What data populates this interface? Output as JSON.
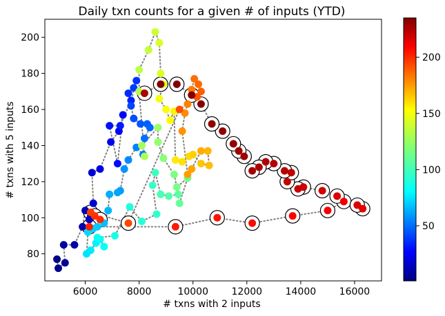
{
  "chart_data": {
    "type": "scatter",
    "title": "Daily txn counts for a given # of inputs (YTD)",
    "xlabel": "# txns with 2 inputs",
    "ylabel": "# txns with 5 inputs",
    "xlim": [
      4500,
      17000
    ],
    "ylim": [
      65,
      210
    ],
    "xticks": [
      6000,
      8000,
      10000,
      12000,
      14000,
      16000
    ],
    "yticks": [
      80,
      100,
      120,
      140,
      160,
      180,
      200
    ],
    "grid": false,
    "colorbar": {
      "colormap": "jet",
      "range": [
        1,
        235
      ],
      "ticks": [
        50,
        100,
        150,
        200
      ],
      "label": ""
    },
    "points": [
      {
        "x": 4950,
        "y": 77,
        "day": 2
      },
      {
        "x": 5000,
        "y": 72,
        "day": 4
      },
      {
        "x": 5250,
        "y": 75,
        "day": 6
      },
      {
        "x": 5200,
        "y": 85,
        "day": 8
      },
      {
        "x": 5600,
        "y": 85,
        "day": 10
      },
      {
        "x": 5900,
        "y": 95,
        "day": 12
      },
      {
        "x": 6000,
        "y": 104,
        "day": 14
      },
      {
        "x": 6150,
        "y": 99,
        "day": 16
      },
      {
        "x": 6200,
        "y": 100,
        "day": 18
      },
      {
        "x": 6300,
        "y": 108,
        "day": 20
      },
      {
        "x": 6250,
        "y": 125,
        "day": 22
      },
      {
        "x": 6550,
        "y": 127,
        "day": 24
      },
      {
        "x": 6950,
        "y": 142,
        "day": 26
      },
      {
        "x": 7250,
        "y": 148,
        "day": 28
      },
      {
        "x": 7400,
        "y": 157,
        "day": 30
      },
      {
        "x": 7200,
        "y": 130,
        "day": 32
      },
      {
        "x": 6900,
        "y": 151,
        "day": 34
      },
      {
        "x": 7300,
        "y": 151,
        "day": 36
      },
      {
        "x": 7700,
        "y": 165,
        "day": 38
      },
      {
        "x": 7600,
        "y": 169,
        "day": 40
      },
      {
        "x": 7900,
        "y": 176,
        "day": 42
      },
      {
        "x": 7800,
        "y": 172,
        "day": 44
      },
      {
        "x": 7700,
        "y": 162,
        "day": 46
      },
      {
        "x": 7800,
        "y": 155,
        "day": 48
      },
      {
        "x": 8050,
        "y": 152,
        "day": 50
      },
      {
        "x": 8300,
        "y": 152,
        "day": 52
      },
      {
        "x": 8400,
        "y": 150,
        "day": 54
      },
      {
        "x": 8200,
        "y": 144,
        "day": 56
      },
      {
        "x": 8150,
        "y": 135,
        "day": 58
      },
      {
        "x": 7900,
        "y": 139,
        "day": 60
      },
      {
        "x": 7600,
        "y": 132,
        "day": 62
      },
      {
        "x": 7450,
        "y": 127,
        "day": 64
      },
      {
        "x": 7300,
        "y": 115,
        "day": 66
      },
      {
        "x": 7200,
        "y": 114,
        "day": 68
      },
      {
        "x": 6900,
        "y": 113,
        "day": 70
      },
      {
        "x": 6850,
        "y": 104,
        "day": 72
      },
      {
        "x": 6700,
        "y": 97,
        "day": 74
      },
      {
        "x": 6450,
        "y": 95,
        "day": 76
      },
      {
        "x": 6300,
        "y": 94,
        "day": 78
      },
      {
        "x": 6100,
        "y": 92,
        "day": 80
      },
      {
        "x": 6050,
        "y": 80,
        "day": 82
      },
      {
        "x": 6200,
        "y": 82,
        "day": 84
      },
      {
        "x": 6400,
        "y": 86,
        "day": 86
      },
      {
        "x": 6550,
        "y": 88,
        "day": 88
      },
      {
        "x": 6700,
        "y": 84,
        "day": 90
      },
      {
        "x": 6450,
        "y": 89,
        "day": 92
      },
      {
        "x": 7100,
        "y": 90,
        "day": 94
      },
      {
        "x": 7650,
        "y": 106,
        "day": 96
      },
      {
        "x": 8100,
        "y": 98,
        "day": 98
      },
      {
        "x": 8650,
        "y": 102,
        "day": 100
      },
      {
        "x": 8500,
        "y": 118,
        "day": 102
      },
      {
        "x": 8600,
        "y": 125,
        "day": 104
      },
      {
        "x": 8800,
        "y": 113,
        "day": 106
      },
      {
        "x": 9100,
        "y": 112,
        "day": 108
      },
      {
        "x": 9450,
        "y": 113,
        "day": 110
      },
      {
        "x": 9500,
        "y": 108,
        "day": 112
      },
      {
        "x": 9800,
        "y": 122,
        "day": 114
      },
      {
        "x": 9400,
        "y": 117,
        "day": 116
      },
      {
        "x": 9300,
        "y": 124,
        "day": 118
      },
      {
        "x": 8900,
        "y": 133,
        "day": 120
      },
      {
        "x": 8700,
        "y": 142,
        "day": 122
      },
      {
        "x": 8700,
        "y": 150,
        "day": 124
      },
      {
        "x": 8100,
        "y": 140,
        "day": 126
      },
      {
        "x": 8200,
        "y": 134,
        "day": 128
      },
      {
        "x": 8000,
        "y": 170,
        "day": 130
      },
      {
        "x": 8000,
        "y": 182,
        "day": 132
      },
      {
        "x": 8350,
        "y": 193,
        "day": 134
      },
      {
        "x": 8600,
        "y": 203,
        "day": 136
      },
      {
        "x": 8750,
        "y": 197,
        "day": 138
      },
      {
        "x": 8800,
        "y": 180,
        "day": 140
      },
      {
        "x": 8900,
        "y": 174,
        "day": 142
      },
      {
        "x": 8750,
        "y": 166,
        "day": 144
      },
      {
        "x": 9000,
        "y": 160,
        "day": 146
      },
      {
        "x": 9150,
        "y": 154,
        "day": 148
      },
      {
        "x": 9300,
        "y": 159,
        "day": 150
      },
      {
        "x": 9350,
        "y": 132,
        "day": 152
      },
      {
        "x": 9600,
        "y": 131,
        "day": 154
      },
      {
        "x": 9850,
        "y": 134,
        "day": 156
      },
      {
        "x": 10000,
        "y": 135,
        "day": 158
      },
      {
        "x": 10300,
        "y": 130,
        "day": 160
      },
      {
        "x": 10600,
        "y": 129,
        "day": 162
      },
      {
        "x": 10550,
        "y": 137,
        "day": 164
      },
      {
        "x": 10300,
        "y": 137,
        "day": 166
      },
      {
        "x": 9950,
        "y": 127,
        "day": 168
      },
      {
        "x": 9800,
        "y": 124,
        "day": 170
      },
      {
        "x": 9600,
        "y": 148,
        "day": 172
      },
      {
        "x": 9700,
        "y": 158,
        "day": 174
      },
      {
        "x": 9800,
        "y": 163,
        "day": 176
      },
      {
        "x": 9950,
        "y": 171,
        "day": 178
      },
      {
        "x": 10050,
        "y": 177,
        "day": 180
      },
      {
        "x": 10200,
        "y": 174,
        "day": 182
      },
      {
        "x": 10300,
        "y": 170,
        "day": 184
      },
      {
        "x": 10150,
        "y": 167,
        "day": 186
      },
      {
        "x": 9500,
        "y": 160,
        "day": 188
      },
      {
        "x": 7600,
        "y": 97,
        "day": 190
      },
      {
        "x": 6200,
        "y": 103,
        "day": 192
      },
      {
        "x": 6350,
        "y": 101,
        "day": 194
      },
      {
        "x": 6550,
        "y": 99,
        "day": 196
      },
      {
        "x": 6150,
        "y": 95,
        "day": 198
      },
      {
        "x": 9350,
        "y": 95,
        "day": 200
      },
      {
        "x": 10900,
        "y": 100,
        "day": 202
      },
      {
        "x": 12200,
        "y": 97,
        "day": 204
      },
      {
        "x": 13700,
        "y": 101,
        "day": 206
      },
      {
        "x": 15000,
        "y": 104,
        "day": 208
      },
      {
        "x": 15600,
        "y": 109,
        "day": 210
      },
      {
        "x": 16300,
        "y": 105,
        "day": 212
      },
      {
        "x": 16100,
        "y": 107,
        "day": 213
      },
      {
        "x": 15350,
        "y": 112,
        "day": 214
      },
      {
        "x": 14800,
        "y": 115,
        "day": 216
      },
      {
        "x": 14100,
        "y": 117,
        "day": 218
      },
      {
        "x": 13900,
        "y": 116,
        "day": 219
      },
      {
        "x": 13500,
        "y": 120,
        "day": 220
      },
      {
        "x": 13650,
        "y": 125,
        "day": 221
      },
      {
        "x": 13400,
        "y": 126,
        "day": 222
      },
      {
        "x": 13000,
        "y": 130,
        "day": 223
      },
      {
        "x": 12700,
        "y": 131,
        "day": 224
      },
      {
        "x": 12450,
        "y": 128,
        "day": 225
      },
      {
        "x": 12200,
        "y": 126,
        "day": 226
      },
      {
        "x": 11900,
        "y": 134,
        "day": 228
      },
      {
        "x": 11700,
        "y": 137,
        "day": 229
      },
      {
        "x": 11500,
        "y": 141,
        "day": 230
      },
      {
        "x": 11100,
        "y": 148,
        "day": 231
      },
      {
        "x": 10700,
        "y": 152,
        "day": 232
      },
      {
        "x": 10300,
        "y": 163,
        "day": 233
      },
      {
        "x": 9950,
        "y": 168,
        "day": 234
      },
      {
        "x": 9400,
        "y": 174,
        "day": 235
      },
      {
        "x": 8800,
        "y": 174,
        "day": 235
      },
      {
        "x": 8200,
        "y": 169,
        "day": 226
      }
    ],
    "circled_days_from": 190
  }
}
